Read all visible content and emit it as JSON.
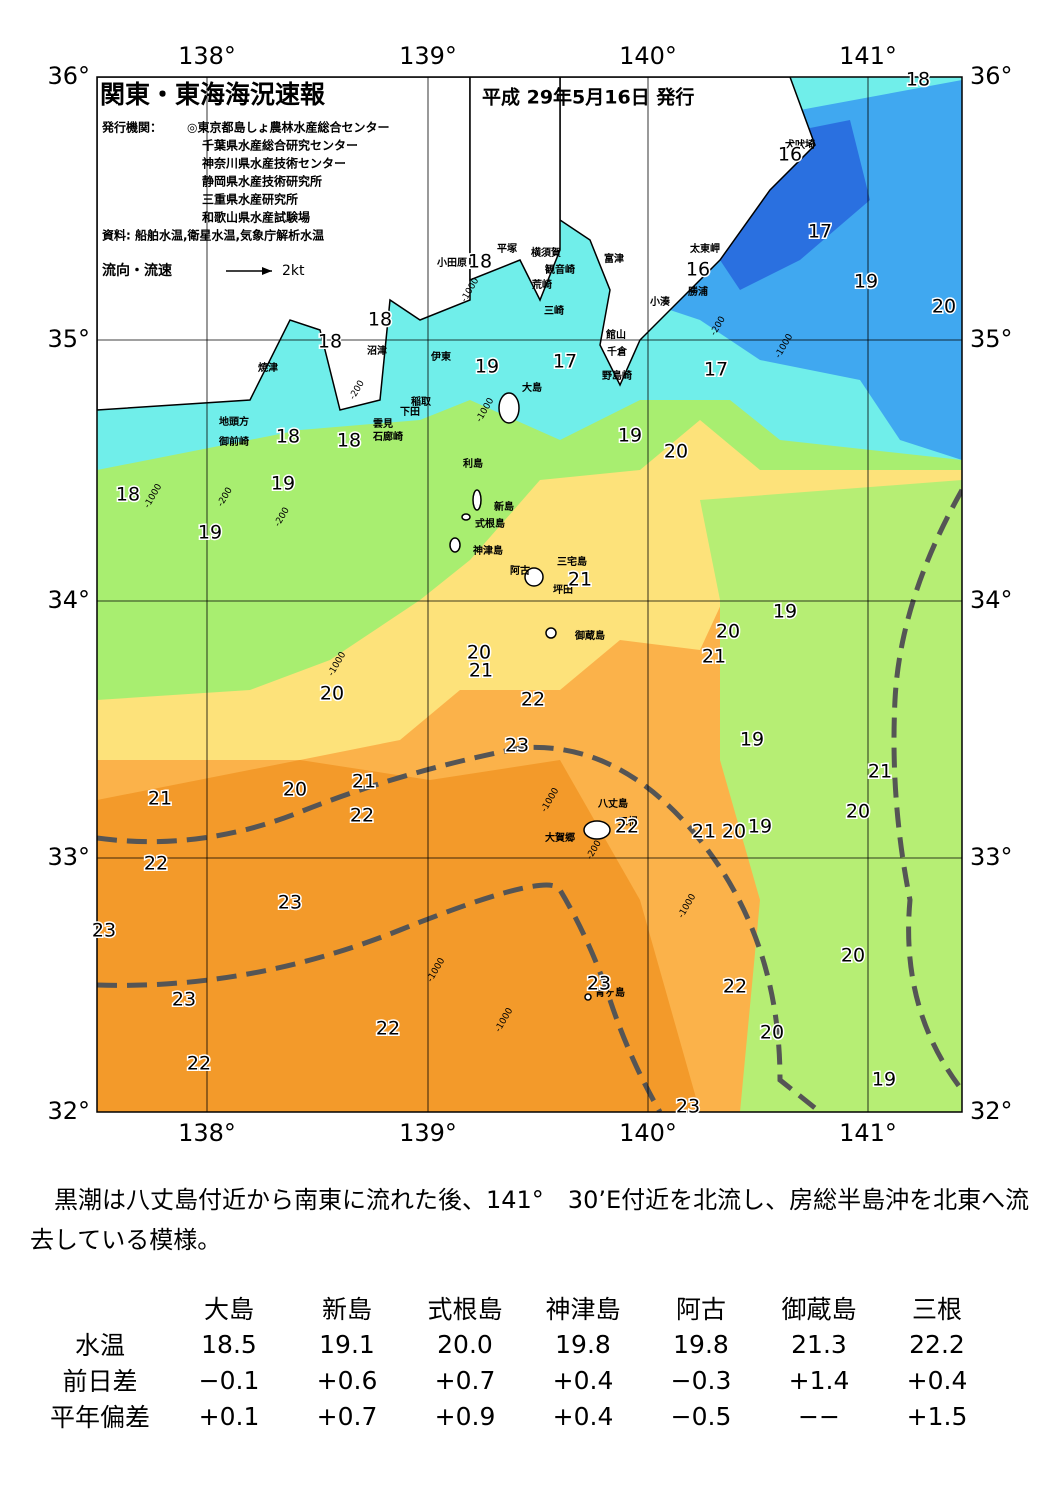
{
  "map": {
    "title": "関東・東海海況速報",
    "date": "平成 29年5月16日 発行",
    "issuer_label": "発行機関：",
    "issuers": [
      "◎東京都島しょ農林水産総合センター",
      "千葉県水産総合研究センター",
      "神奈川県水産技術センター",
      "静岡県水産技術研究所",
      "三重県水産研究所",
      "和歌山県水産試験場"
    ],
    "source": "資料: 船舶水温,衛星水温,気象庁解析水温",
    "legend_label": "流向・流速",
    "legend_speed": "2kt",
    "lon_labels": [
      "138°",
      "139°",
      "140°",
      "141°"
    ],
    "lat_labels": [
      "36°",
      "35°",
      "34°",
      "33°",
      "32°"
    ],
    "places": [
      "犬吠埼",
      "太東岬",
      "勝浦",
      "小湊",
      "富津",
      "平塚",
      "横須賀",
      "観音崎",
      "荒崎",
      "三崎",
      "館山",
      "千倉",
      "野島崎",
      "小田原",
      "沼津",
      "伊東",
      "焼津",
      "大島",
      "稲取",
      "下田",
      "雲見",
      "石廊崎",
      "地頭方",
      "御前崎",
      "利島",
      "新島",
      "式根島",
      "神津島",
      "三宅島",
      "阿古",
      "坪田",
      "御蔵島",
      "八丈島",
      "三根",
      "大賀郷",
      "青ヶ島"
    ],
    "temp_labels": [
      "18",
      "16",
      "17",
      "16",
      "18",
      "19",
      "20",
      "18",
      "18",
      "19",
      "17",
      "17",
      "19",
      "20",
      "18",
      "18",
      "19",
      "18",
      "19",
      "21",
      "19",
      "20",
      "21",
      "20",
      "21",
      "20",
      "22",
      "23",
      "19",
      "21",
      "21",
      "20",
      "21",
      "22",
      "20",
      "22",
      "21",
      "20",
      "19",
      "22",
      "23",
      "23",
      "20",
      "23",
      "23",
      "22",
      "22",
      "20",
      "22",
      "19",
      "23"
    ],
    "depth_labels": [
      "-1000",
      "-200",
      "-200",
      "-1000",
      "-1000",
      "-200",
      "-200",
      "-1000",
      "-1000",
      "-200",
      "-1000",
      "-1000",
      "-1000",
      "-1000"
    ]
  },
  "text": "黒潮は八丈島付近から南東に流れた後、141°　30’E付近を北流し、房総半島沖を北東へ流去している模様。",
  "table": {
    "columns": [
      "大島",
      "新島",
      "式根島",
      "神津島",
      "阿古",
      "御蔵島",
      "三根"
    ],
    "rows": [
      {
        "label": "水温",
        "values": [
          "18.5",
          "19.1",
          "20.0",
          "19.8",
          "19.8",
          "21.3",
          "22.2"
        ]
      },
      {
        "label": "前日差",
        "values": [
          "−0.1",
          "+0.6",
          "+0.7",
          "+0.4",
          "−0.3",
          "+1.4",
          "+0.4"
        ]
      },
      {
        "label": "平年偏差",
        "values": [
          "+0.1",
          "+0.7",
          "+0.9",
          "+0.4",
          "−0.5",
          "−−",
          "+1.5"
        ]
      }
    ]
  }
}
